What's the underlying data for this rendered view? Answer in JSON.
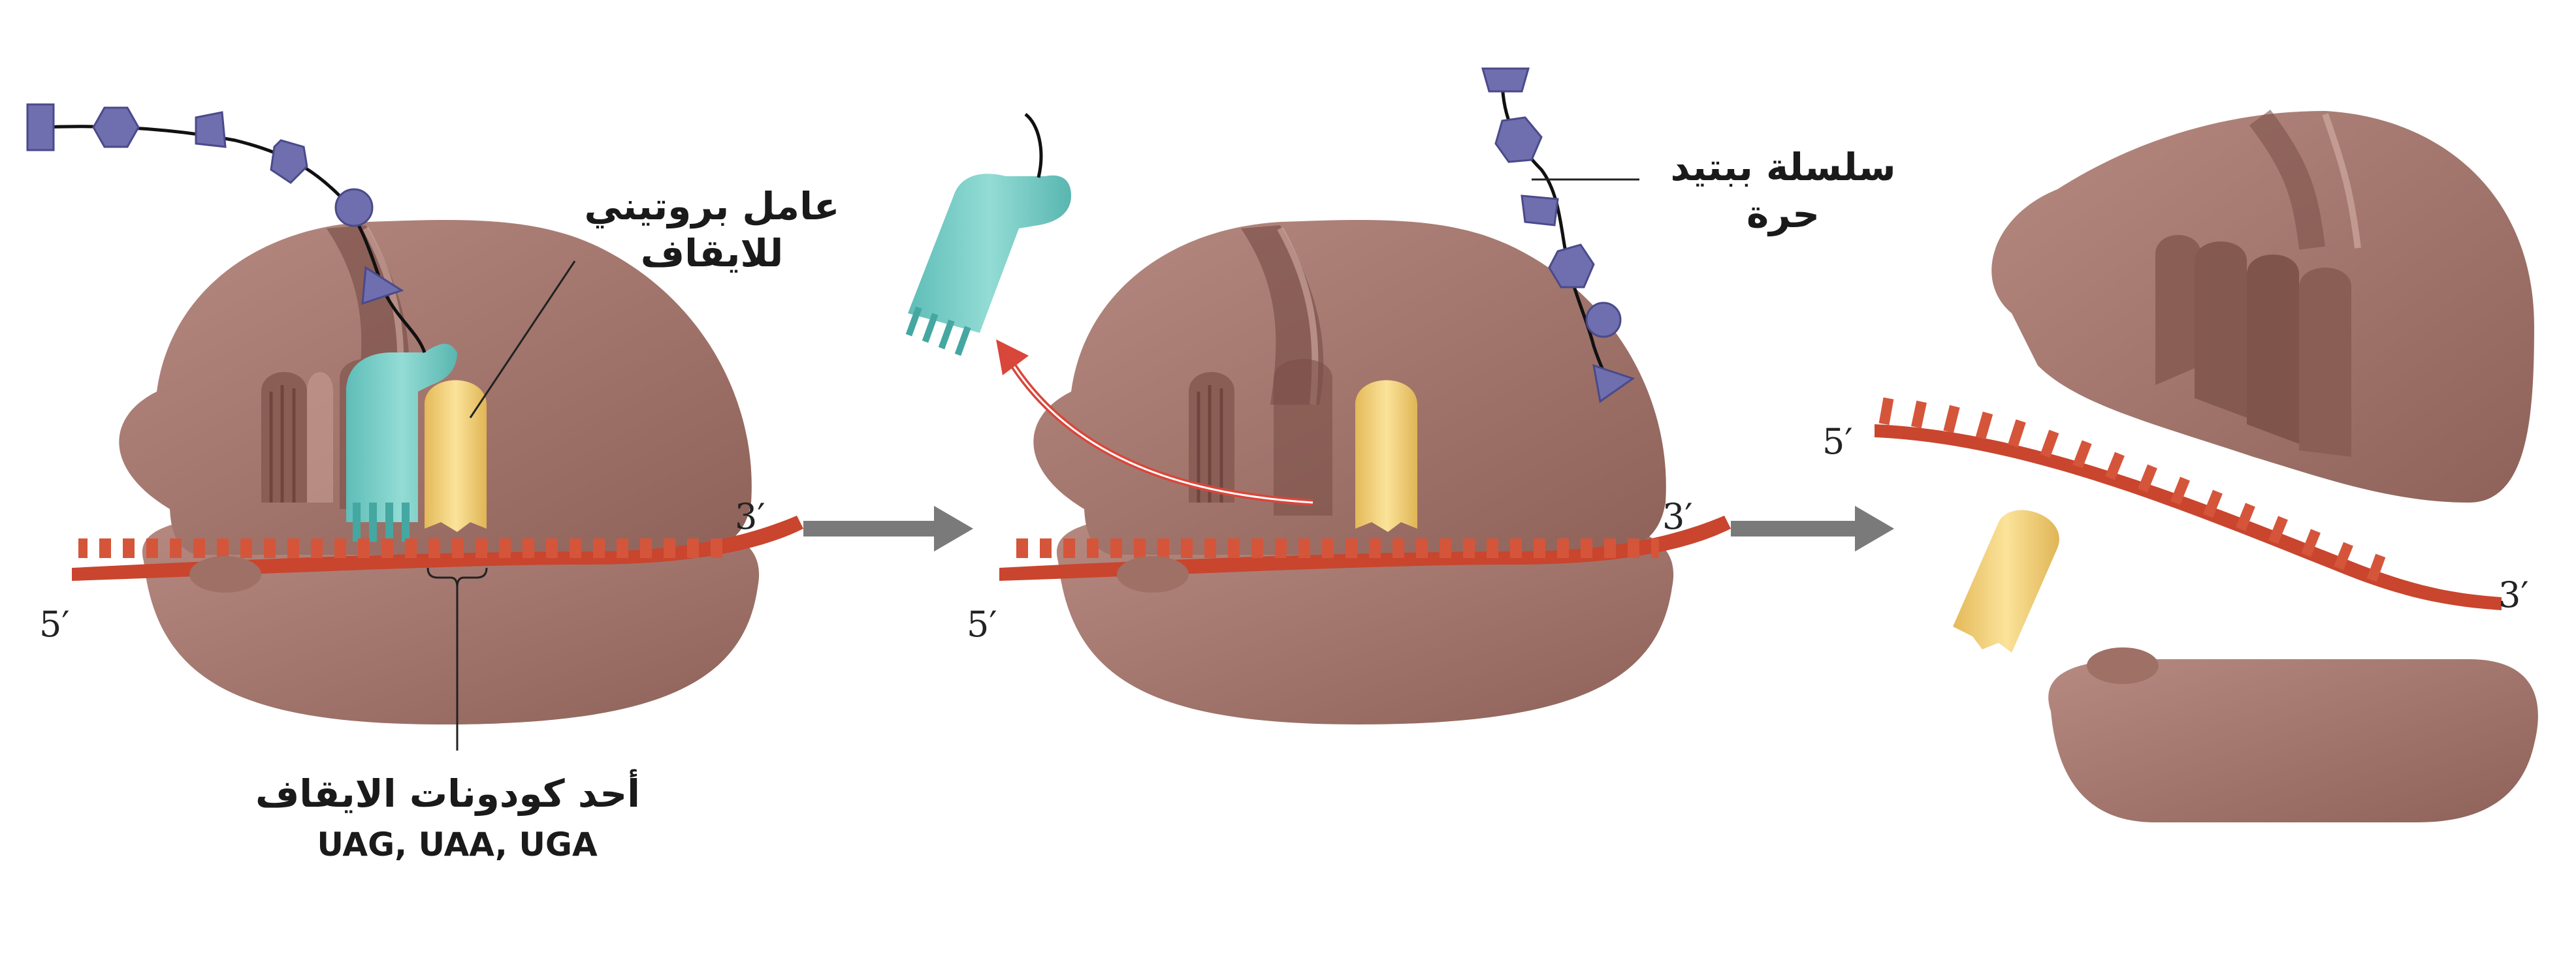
{
  "labels": {
    "release_factor_line1": "عامل بروتيني",
    "release_factor_line2": "للايقاف",
    "free_polypeptide_line1": "سلسلة ببتيد",
    "free_polypeptide_line2": "حرة",
    "stop_codon_title": "أحد كودونات الايقاف",
    "stop_codons": "UAG, UAA, UGA"
  },
  "mrna_ends": {
    "five_prime": "5′",
    "three_prime": "3′"
  },
  "colors": {
    "ribosome": "#a9786f",
    "ribosome_dark": "#8a5e56",
    "mrna": "#c9452e",
    "release_factor": "#7dcfc8",
    "trna_yellow": "#f3d57a",
    "polypeptide": "#6f6fb0",
    "arrow_gray": "#7a7a7a",
    "exit_arrow": "#d9463a"
  },
  "icons": {
    "step_arrow": "right-arrow-icon"
  }
}
